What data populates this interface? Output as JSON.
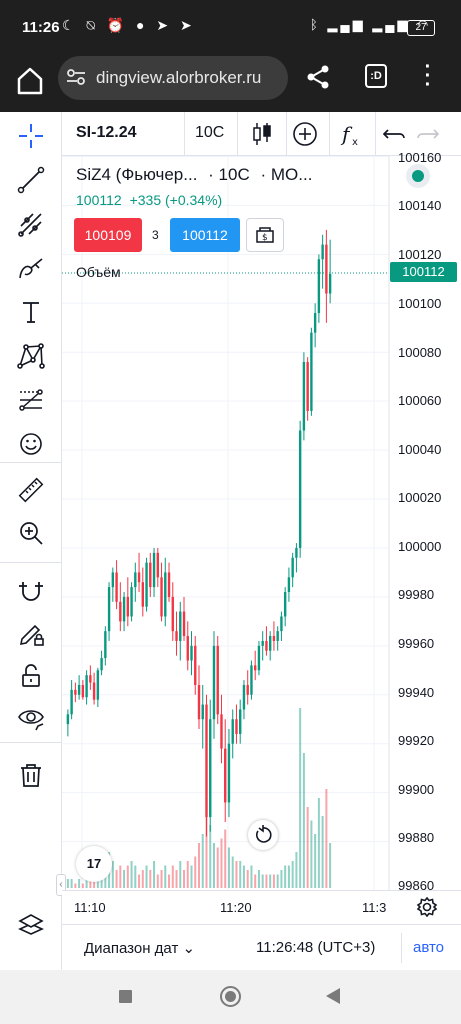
{
  "status_bar": {
    "time": "11:26",
    "left_icons": [
      "moon-icon",
      "bell-off-icon",
      "alarm-icon",
      "chat-icon",
      "telegram-icon",
      "telegram-icon"
    ],
    "right_icons": [
      "bluetooth-icon",
      "signal-icon",
      "signal-icon",
      "wifi-icon"
    ],
    "battery": "27"
  },
  "browser": {
    "url": "dingview.alorbroker.ru",
    "tab_label": ":D"
  },
  "toolbar": {
    "symbol": "SI-12.24",
    "timeframe": "10С"
  },
  "legend": {
    "title": "SiZ4 (Фьючер...",
    "interval": "· 10С",
    "exchange": "· МО...",
    "price": "100112",
    "change": "+335 (+0.34%)",
    "sell_price": "100109",
    "spread": "3",
    "buy_price": "100112",
    "volume_label": "Объём"
  },
  "price_axis": {
    "labels": [
      "100160",
      "100140",
      "100120",
      "100100",
      "100080",
      "100060",
      "100040",
      "100020",
      "100000",
      "99980",
      "99960",
      "99940",
      "99920",
      "99900",
      "99880",
      "99860"
    ],
    "current_price": "100112"
  },
  "time_axis": {
    "labels": [
      "11:10",
      "11:20",
      "11:3"
    ]
  },
  "bottom_bar": {
    "date_range": "Диапазон дат",
    "clock": "11:26:48 (UTC+3)",
    "auto": "авто"
  },
  "logo_text": "17",
  "colors": {
    "up": "#089981",
    "down": "#f23645",
    "accent": "#2962ff",
    "sell": "#f23645",
    "buy": "#2196f3"
  },
  "chart_data": {
    "type": "candlestick",
    "x_axis": [
      "11:10",
      "11:20",
      "11:3"
    ],
    "ylim": [
      99860,
      100160
    ],
    "last_price": 100112,
    "points": [
      {
        "o": 99928,
        "h": 99934,
        "l": 99923,
        "c": 99932,
        "v": 2
      },
      {
        "o": 99932,
        "h": 99946,
        "l": 99930,
        "c": 99942,
        "v": 2
      },
      {
        "o": 99942,
        "h": 99945,
        "l": 99937,
        "c": 99940,
        "v": 1
      },
      {
        "o": 99940,
        "h": 99948,
        "l": 99938,
        "c": 99944,
        "v": 2
      },
      {
        "o": 99944,
        "h": 99946,
        "l": 99938,
        "c": 99939,
        "v": 1
      },
      {
        "o": 99939,
        "h": 99950,
        "l": 99936,
        "c": 99948,
        "v": 3
      },
      {
        "o": 99948,
        "h": 99952,
        "l": 99942,
        "c": 99945,
        "v": 2
      },
      {
        "o": 99945,
        "h": 99949,
        "l": 99936,
        "c": 99938,
        "v": 2
      },
      {
        "o": 99938,
        "h": 99951,
        "l": 99935,
        "c": 99950,
        "v": 4
      },
      {
        "o": 99950,
        "h": 99958,
        "l": 99948,
        "c": 99955,
        "v": 3
      },
      {
        "o": 99955,
        "h": 99968,
        "l": 99952,
        "c": 99966,
        "v": 5
      },
      {
        "o": 99966,
        "h": 99986,
        "l": 99962,
        "c": 99984,
        "v": 8
      },
      {
        "o": 99984,
        "h": 99992,
        "l": 99978,
        "c": 99990,
        "v": 6
      },
      {
        "o": 99990,
        "h": 99995,
        "l": 99975,
        "c": 99978,
        "v": 4
      },
      {
        "o": 99978,
        "h": 99986,
        "l": 99966,
        "c": 99970,
        "v": 5
      },
      {
        "o": 99970,
        "h": 99982,
        "l": 99966,
        "c": 99980,
        "v": 4
      },
      {
        "o": 99980,
        "h": 99988,
        "l": 99968,
        "c": 99972,
        "v": 5
      },
      {
        "o": 99972,
        "h": 99986,
        "l": 99970,
        "c": 99984,
        "v": 6
      },
      {
        "o": 99984,
        "h": 99994,
        "l": 99978,
        "c": 99990,
        "v": 5
      },
      {
        "o": 99990,
        "h": 99998,
        "l": 99982,
        "c": 99986,
        "v": 3
      },
      {
        "o": 99986,
        "h": 99992,
        "l": 99972,
        "c": 99976,
        "v": 4
      },
      {
        "o": 99976,
        "h": 99996,
        "l": 99974,
        "c": 99994,
        "v": 5
      },
      {
        "o": 99994,
        "h": 99998,
        "l": 99980,
        "c": 99984,
        "v": 4
      },
      {
        "o": 99984,
        "h": 100000,
        "l": 99980,
        "c": 99998,
        "v": 6
      },
      {
        "o": 99998,
        "h": 100000,
        "l": 99984,
        "c": 99988,
        "v": 3
      },
      {
        "o": 99988,
        "h": 99994,
        "l": 99970,
        "c": 99972,
        "v": 4
      },
      {
        "o": 99972,
        "h": 99996,
        "l": 99968,
        "c": 99990,
        "v": 5
      },
      {
        "o": 99990,
        "h": 99994,
        "l": 99978,
        "c": 99980,
        "v": 3
      },
      {
        "o": 99980,
        "h": 99986,
        "l": 99962,
        "c": 99966,
        "v": 5
      },
      {
        "o": 99966,
        "h": 99974,
        "l": 99956,
        "c": 99962,
        "v": 4
      },
      {
        "o": 99962,
        "h": 99978,
        "l": 99954,
        "c": 99974,
        "v": 6
      },
      {
        "o": 99974,
        "h": 99980,
        "l": 99962,
        "c": 99964,
        "v": 4
      },
      {
        "o": 99964,
        "h": 99970,
        "l": 99950,
        "c": 99954,
        "v": 6
      },
      {
        "o": 99954,
        "h": 99966,
        "l": 99948,
        "c": 99960,
        "v": 5
      },
      {
        "o": 99960,
        "h": 99964,
        "l": 99940,
        "c": 99944,
        "v": 7
      },
      {
        "o": 99944,
        "h": 99952,
        "l": 99926,
        "c": 99930,
        "v": 10
      },
      {
        "o": 99930,
        "h": 99944,
        "l": 99918,
        "c": 99936,
        "v": 12
      },
      {
        "o": 99936,
        "h": 99940,
        "l": 99882,
        "c": 99890,
        "v": 18
      },
      {
        "o": 99890,
        "h": 99938,
        "l": 99884,
        "c": 99930,
        "v": 14
      },
      {
        "o": 99930,
        "h": 99966,
        "l": 99922,
        "c": 99960,
        "v": 10
      },
      {
        "o": 99960,
        "h": 99964,
        "l": 99928,
        "c": 99932,
        "v": 9
      },
      {
        "o": 99932,
        "h": 99940,
        "l": 99912,
        "c": 99918,
        "v": 11
      },
      {
        "o": 99918,
        "h": 99930,
        "l": 99888,
        "c": 99896,
        "v": 13
      },
      {
        "o": 99896,
        "h": 99926,
        "l": 99890,
        "c": 99920,
        "v": 9
      },
      {
        "o": 99920,
        "h": 99934,
        "l": 99914,
        "c": 99930,
        "v": 7
      },
      {
        "o": 99930,
        "h": 99936,
        "l": 99920,
        "c": 99924,
        "v": 6
      },
      {
        "o": 99924,
        "h": 99938,
        "l": 99920,
        "c": 99934,
        "v": 6
      },
      {
        "o": 99934,
        "h": 99946,
        "l": 99930,
        "c": 99944,
        "v": 5
      },
      {
        "o": 99944,
        "h": 99950,
        "l": 99936,
        "c": 99940,
        "v": 4
      },
      {
        "o": 99940,
        "h": 99954,
        "l": 99938,
        "c": 99952,
        "v": 5
      },
      {
        "o": 99952,
        "h": 99958,
        "l": 99946,
        "c": 99950,
        "v": 3
      },
      {
        "o": 99950,
        "h": 99962,
        "l": 99948,
        "c": 99960,
        "v": 4
      },
      {
        "o": 99960,
        "h": 99966,
        "l": 99954,
        "c": 99962,
        "v": 3
      },
      {
        "o": 99962,
        "h": 99968,
        "l": 99956,
        "c": 99958,
        "v": 3
      },
      {
        "o": 99958,
        "h": 99966,
        "l": 99954,
        "c": 99964,
        "v": 3
      },
      {
        "o": 99964,
        "h": 99970,
        "l": 99958,
        "c": 99962,
        "v": 3
      },
      {
        "o": 99962,
        "h": 99968,
        "l": 99958,
        "c": 99966,
        "v": 3
      },
      {
        "o": 99966,
        "h": 99974,
        "l": 99962,
        "c": 99972,
        "v": 4
      },
      {
        "o": 99972,
        "h": 99984,
        "l": 99968,
        "c": 99982,
        "v": 5
      },
      {
        "o": 99982,
        "h": 99992,
        "l": 99978,
        "c": 99988,
        "v": 5
      },
      {
        "o": 99988,
        "h": 99998,
        "l": 99984,
        "c": 99996,
        "v": 6
      },
      {
        "o": 99996,
        "h": 100002,
        "l": 99990,
        "c": 100000,
        "v": 8
      },
      {
        "o": 100000,
        "h": 100052,
        "l": 99996,
        "c": 100048,
        "v": 40
      },
      {
        "o": 100048,
        "h": 100080,
        "l": 100044,
        "c": 100076,
        "v": 30
      },
      {
        "o": 100076,
        "h": 100078,
        "l": 100052,
        "c": 100056,
        "v": 18
      },
      {
        "o": 100056,
        "h": 100090,
        "l": 100054,
        "c": 100088,
        "v": 15
      },
      {
        "o": 100088,
        "h": 100100,
        "l": 100082,
        "c": 100096,
        "v": 12
      },
      {
        "o": 100096,
        "h": 100120,
        "l": 100092,
        "c": 100118,
        "v": 20
      },
      {
        "o": 100118,
        "h": 100128,
        "l": 100106,
        "c": 100124,
        "v": 16
      },
      {
        "o": 100124,
        "h": 100130,
        "l": 100092,
        "c": 100104,
        "v": 22
      },
      {
        "o": 100104,
        "h": 100126,
        "l": 100100,
        "c": 100112,
        "v": 10
      }
    ]
  }
}
